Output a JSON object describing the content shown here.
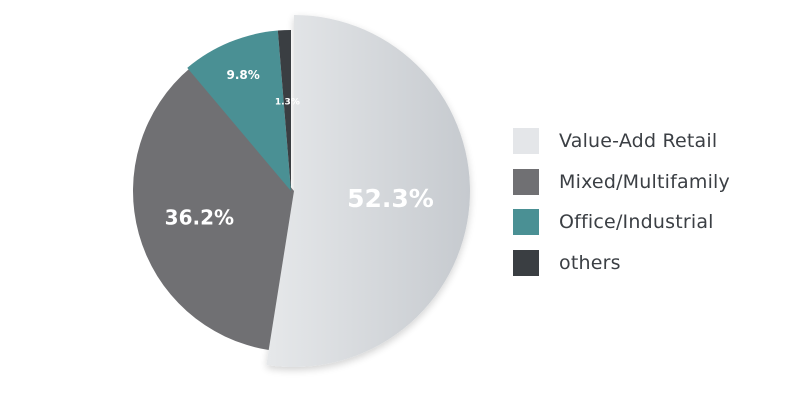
{
  "chart_data": {
    "type": "pie",
    "categories": [
      "Value-Add Retail",
      "Mixed/Multifamily",
      "Office/Industrial",
      "others"
    ],
    "values": [
      52.3,
      36.2,
      9.8,
      1.3
    ],
    "value_labels": [
      "52.3%",
      "36.2%",
      "9.8%",
      "1.3%"
    ],
    "colors": [
      "#d6d9dd",
      "#707073",
      "#4a9094",
      "#3a3e42"
    ],
    "legend_position": "right",
    "exploded_slice": "Value-Add Retail"
  },
  "legend": {
    "items": [
      {
        "label": "Value-Add Retail",
        "color": "#e4e6e9"
      },
      {
        "label": "Mixed/Multifamily",
        "color": "#707073"
      },
      {
        "label": "Office/Industrial",
        "color": "#4a9094"
      },
      {
        "label": "others",
        "color": "#3a3e42"
      }
    ]
  }
}
